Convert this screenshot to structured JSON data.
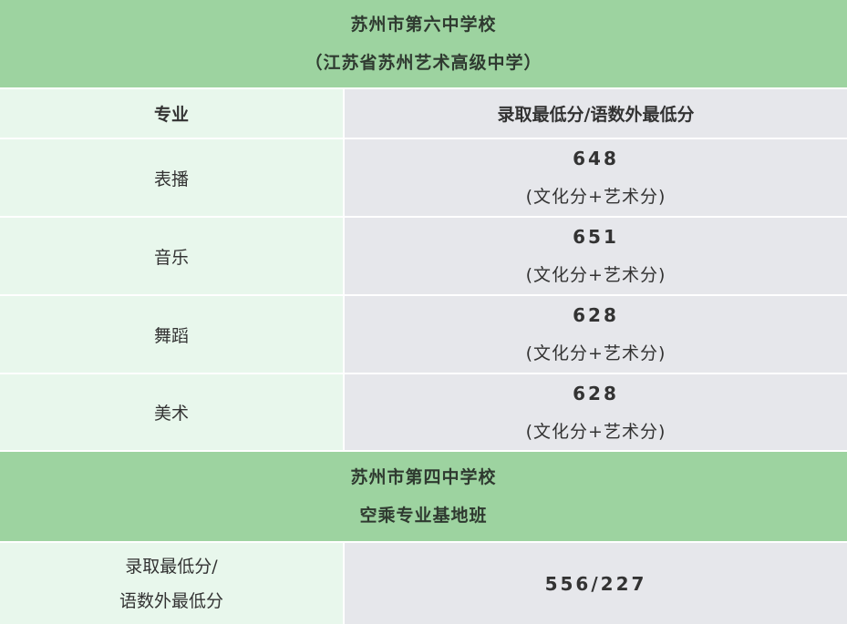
{
  "school1": {
    "title": "苏州市第六中学校",
    "subtitle": "（江苏省苏州艺术高级中学）"
  },
  "header": {
    "major": "专业",
    "score": "录取最低分/语数外最低分"
  },
  "rows": [
    {
      "major": "表播",
      "score": "648",
      "note": "(文化分+艺术分)"
    },
    {
      "major": "音乐",
      "score": "651",
      "note": "(文化分+艺术分)"
    },
    {
      "major": "舞蹈",
      "score": "628",
      "note": "(文化分+艺术分)"
    },
    {
      "major": "美术",
      "score": "628",
      "note": "(文化分+艺术分)"
    }
  ],
  "school2": {
    "title": "苏州市第四中学校",
    "subtitle": "空乘专业基地班",
    "label_line1": "录取最低分/",
    "label_line2": "语数外最低分",
    "score": "556/227"
  },
  "colors": {
    "band": "#9dd3a0",
    "left_cell": "#e8f7ec",
    "right_cell": "#e6e7eb"
  }
}
